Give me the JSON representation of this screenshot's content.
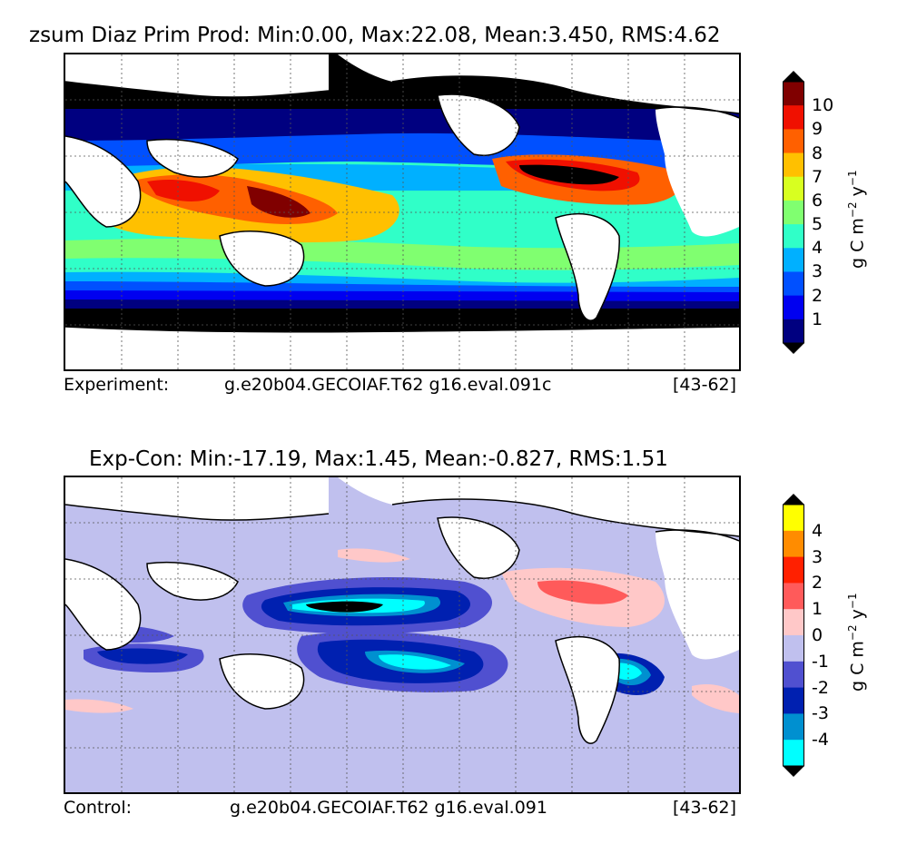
{
  "top": {
    "title": "zsum Diaz Prim Prod: Min:0.00, Max:22.08, Mean:3.450, RMS:4.62",
    "footer_left": "Experiment:",
    "footer_mid": "g.e20b04.GECOIAF.T62 g16.eval.091c",
    "footer_right": "[43-62]",
    "colorbar": {
      "ticks": [
        "1",
        "2",
        "3",
        "4",
        "5",
        "6",
        "7",
        "8",
        "9",
        "10"
      ],
      "colors": [
        "#000080",
        "#0000f0",
        "#0050ff",
        "#00b0ff",
        "#30ffc8",
        "#80ff70",
        "#d8ff20",
        "#ffc000",
        "#ff6000",
        "#f01000",
        "#800000"
      ],
      "extend_min": "#000000",
      "extend_max": "#000000",
      "units": "g C m",
      "units_exp1": "−2",
      "units_mid": " y",
      "units_exp2": "−1"
    }
  },
  "bottom": {
    "title": "Exp-Con: Min:-17.19, Max:1.45, Mean:-0.827, RMS:1.51",
    "footer_left": "Control:",
    "footer_mid": "g.e20b04.GECOIAF.T62 g16.eval.091",
    "footer_right": "[43-62]",
    "colorbar": {
      "ticks": [
        "4",
        "3",
        "2",
        "1",
        "0",
        "-1",
        "-2",
        "-3",
        "-4"
      ],
      "colors": [
        "#ffff00",
        "#ff8c00",
        "#ff2000",
        "#ff5a5a",
        "#ffc8c8",
        "#c0c0ee",
        "#5050d0",
        "#0020b0",
        "#0090d0",
        "#00ffff"
      ],
      "extend_min": "#000000",
      "extend_max": "#000000",
      "units": "g C m",
      "units_exp1": "−2",
      "units_mid": " y",
      "units_exp2": "−1"
    }
  }
}
